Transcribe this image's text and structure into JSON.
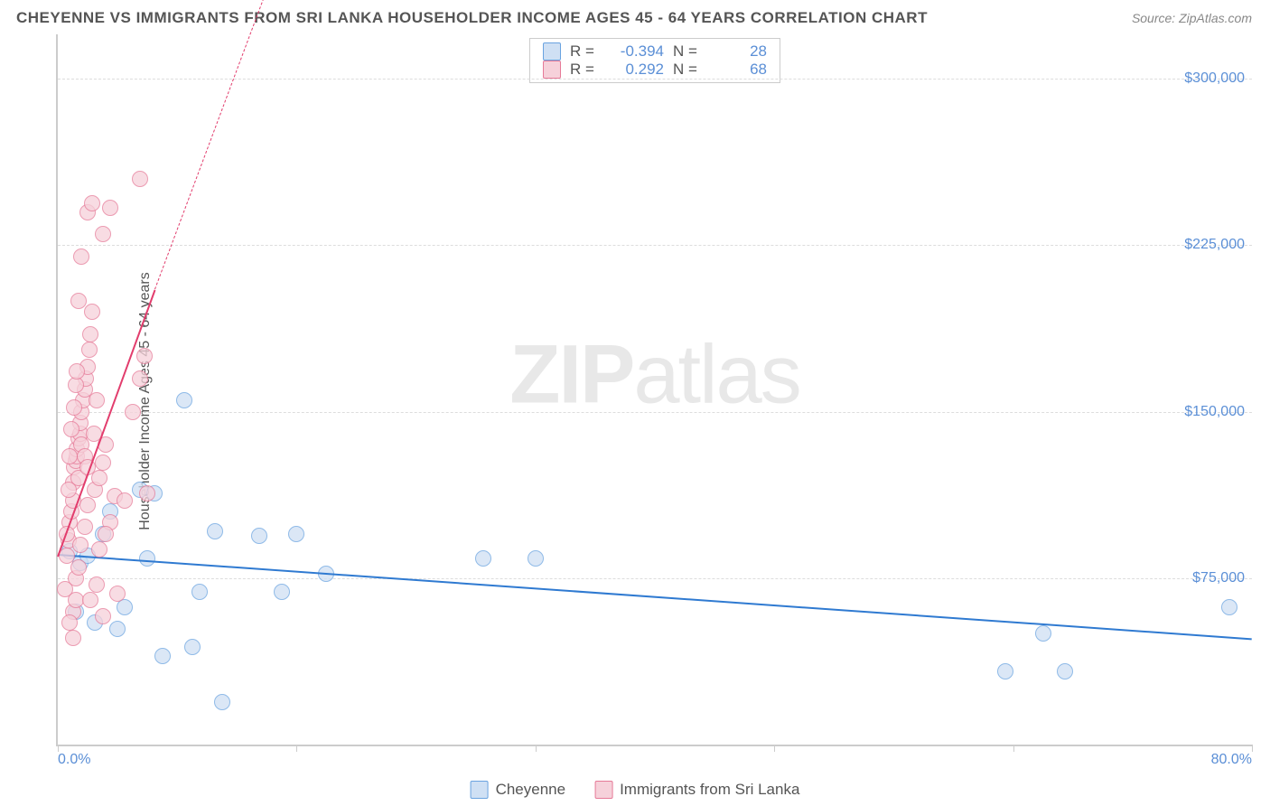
{
  "header": {
    "title": "CHEYENNE VS IMMIGRANTS FROM SRI LANKA HOUSEHOLDER INCOME AGES 45 - 64 YEARS CORRELATION CHART",
    "source": "Source: ZipAtlas.com"
  },
  "ylabel": "Householder Income Ages 45 - 64 years",
  "watermark_a": "ZIP",
  "watermark_b": "atlas",
  "chart": {
    "type": "scatter",
    "background_color": "#ffffff",
    "grid_color": "#dddddd",
    "axis_color": "#cccccc",
    "xlim": [
      0,
      80
    ],
    "ylim": [
      0,
      320000
    ],
    "yticks": [
      75000,
      150000,
      225000,
      300000
    ],
    "ytick_labels": [
      "$75,000",
      "$150,000",
      "$225,000",
      "$300,000"
    ],
    "xtick_positions": [
      0,
      16,
      32,
      48,
      64,
      80
    ],
    "xaxis_left_label": "0.0%",
    "xaxis_right_label": "80.0%",
    "marker_radius": 9,
    "marker_stroke_width": 1.5,
    "series": [
      {
        "name": "Cheyenne",
        "fill": "#cfe0f4",
        "stroke": "#6aa3e0",
        "trend_color": "#2f7ad1",
        "R": "-0.394",
        "N": "28",
        "trend": {
          "x1": 0,
          "y1": 86000,
          "x2": 80,
          "y2": 48000
        },
        "points": [
          [
            0.8,
            87000
          ],
          [
            1.5,
            82000
          ],
          [
            1.2,
            60000
          ],
          [
            2.0,
            85000
          ],
          [
            3.0,
            95000
          ],
          [
            2.5,
            55000
          ],
          [
            3.5,
            105000
          ],
          [
            4.0,
            52000
          ],
          [
            4.5,
            62000
          ],
          [
            5.5,
            115000
          ],
          [
            6.0,
            84000
          ],
          [
            6.5,
            113000
          ],
          [
            7.0,
            40000
          ],
          [
            8.5,
            155000
          ],
          [
            9.0,
            44000
          ],
          [
            9.5,
            69000
          ],
          [
            10.5,
            96000
          ],
          [
            11.0,
            19000
          ],
          [
            13.5,
            94000
          ],
          [
            15.0,
            69000
          ],
          [
            16.0,
            95000
          ],
          [
            18.0,
            77000
          ],
          [
            28.5,
            84000
          ],
          [
            32.0,
            84000
          ],
          [
            63.5,
            33000
          ],
          [
            66.0,
            50000
          ],
          [
            67.5,
            33000
          ],
          [
            78.5,
            62000
          ]
        ]
      },
      {
        "name": "Immigrants from Sri Lanka",
        "fill": "#f6d1da",
        "stroke": "#e67a98",
        "trend_color": "#e23d6d",
        "R": "0.292",
        "N": "68",
        "trend": {
          "x1": 0,
          "y1": 85000,
          "x2": 6.5,
          "y2": 205000
        },
        "trend_dash": {
          "x1": 6.5,
          "y1": 205000,
          "x2": 14,
          "y2": 340000
        },
        "points": [
          [
            0.5,
            70000
          ],
          [
            0.6,
            85000
          ],
          [
            0.7,
            92000
          ],
          [
            0.8,
            100000
          ],
          [
            0.9,
            105000
          ],
          [
            1.0,
            110000
          ],
          [
            1.0,
            118000
          ],
          [
            1.1,
            125000
          ],
          [
            1.2,
            128000
          ],
          [
            1.3,
            130000
          ],
          [
            1.3,
            133000
          ],
          [
            1.4,
            138000
          ],
          [
            1.5,
            140000
          ],
          [
            1.5,
            145000
          ],
          [
            1.6,
            150000
          ],
          [
            1.7,
            155000
          ],
          [
            1.8,
            160000
          ],
          [
            1.9,
            165000
          ],
          [
            2.0,
            170000
          ],
          [
            2.1,
            178000
          ],
          [
            2.2,
            185000
          ],
          [
            2.3,
            195000
          ],
          [
            1.0,
            60000
          ],
          [
            1.2,
            75000
          ],
          [
            1.5,
            90000
          ],
          [
            1.8,
            98000
          ],
          [
            2.0,
            108000
          ],
          [
            2.5,
            115000
          ],
          [
            2.8,
            120000
          ],
          [
            3.0,
            127000
          ],
          [
            3.2,
            135000
          ],
          [
            3.5,
            100000
          ],
          [
            3.8,
            112000
          ],
          [
            4.0,
            68000
          ],
          [
            4.5,
            110000
          ],
          [
            5.0,
            150000
          ],
          [
            5.5,
            165000
          ],
          [
            5.8,
            175000
          ],
          [
            6.0,
            113000
          ],
          [
            1.4,
            200000
          ],
          [
            1.6,
            220000
          ],
          [
            2.0,
            240000
          ],
          [
            2.3,
            244000
          ],
          [
            3.0,
            230000
          ],
          [
            3.5,
            242000
          ],
          [
            5.5,
            255000
          ],
          [
            0.8,
            55000
          ],
          [
            1.0,
            48000
          ],
          [
            1.2,
            65000
          ],
          [
            1.4,
            80000
          ],
          [
            2.2,
            65000
          ],
          [
            2.6,
            72000
          ],
          [
            2.8,
            88000
          ],
          [
            3.2,
            95000
          ],
          [
            3.0,
            58000
          ],
          [
            0.6,
            95000
          ],
          [
            0.7,
            115000
          ],
          [
            0.8,
            130000
          ],
          [
            0.9,
            142000
          ],
          [
            1.1,
            152000
          ],
          [
            1.2,
            162000
          ],
          [
            1.3,
            168000
          ],
          [
            1.4,
            120000
          ],
          [
            1.6,
            135000
          ],
          [
            1.8,
            130000
          ],
          [
            2.0,
            125000
          ],
          [
            2.4,
            140000
          ],
          [
            2.6,
            155000
          ]
        ]
      }
    ]
  },
  "legend_bottom": {
    "items": [
      "Cheyenne",
      "Immigrants from Sri Lanka"
    ]
  },
  "legend_top": {
    "R_label": "R =",
    "N_label": "N ="
  }
}
